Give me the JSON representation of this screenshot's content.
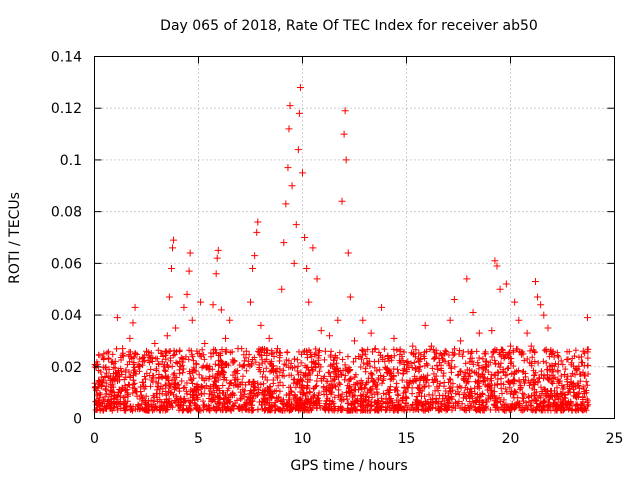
{
  "chart_data": {
    "type": "scatter",
    "title": "Day 065 of 2018, Rate Of TEC Index for receiver ab50",
    "xlabel": "GPS time / hours",
    "ylabel": "ROTI / TECUs",
    "xlim": [
      0,
      25
    ],
    "ylim": [
      0,
      0.14
    ],
    "x_ticks": [
      0,
      5,
      10,
      15,
      20,
      25
    ],
    "y_ticks": [
      0,
      0.02,
      0.04,
      0.06,
      0.08,
      0.1,
      0.12,
      0.14
    ],
    "x_tick_labels": [
      "0",
      "5",
      "10",
      "15",
      "20",
      "25"
    ],
    "y_tick_labels": [
      "0",
      "0.02",
      "0.04",
      "0.06",
      "0.08",
      "0.1",
      "0.12",
      "0.14"
    ],
    "grid": true,
    "marker": "plus",
    "color": "#ff0000",
    "series": [
      {
        "name": "ROTI",
        "points": [
          [
            0.05,
            0.012
          ],
          [
            0.15,
            0.021
          ],
          [
            0.25,
            0.008
          ],
          [
            0.35,
            0.016
          ],
          [
            0.45,
            0.025
          ],
          [
            0.55,
            0.011
          ],
          [
            0.7,
            0.019
          ],
          [
            0.85,
            0.013
          ],
          [
            1.0,
            0.022
          ],
          [
            1.1,
            0.039
          ],
          [
            1.2,
            0.015
          ],
          [
            1.35,
            0.027
          ],
          [
            1.5,
            0.018
          ],
          [
            1.7,
            0.031
          ],
          [
            1.85,
            0.037
          ],
          [
            1.95,
            0.043
          ],
          [
            2.1,
            0.021
          ],
          [
            2.3,
            0.014
          ],
          [
            2.5,
            0.026
          ],
          [
            2.7,
            0.019
          ],
          [
            2.9,
            0.029
          ],
          [
            3.1,
            0.017
          ],
          [
            3.3,
            0.024
          ],
          [
            3.5,
            0.032
          ],
          [
            3.6,
            0.047
          ],
          [
            3.7,
            0.058
          ],
          [
            3.75,
            0.066
          ],
          [
            3.8,
            0.069
          ],
          [
            3.9,
            0.035
          ],
          [
            4.1,
            0.022
          ],
          [
            4.3,
            0.043
          ],
          [
            4.45,
            0.048
          ],
          [
            4.55,
            0.057
          ],
          [
            4.6,
            0.064
          ],
          [
            4.7,
            0.038
          ],
          [
            4.9,
            0.021
          ],
          [
            5.1,
            0.045
          ],
          [
            5.3,
            0.029
          ],
          [
            5.5,
            0.019
          ],
          [
            5.7,
            0.044
          ],
          [
            5.85,
            0.056
          ],
          [
            5.9,
            0.062
          ],
          [
            5.95,
            0.065
          ],
          [
            6.1,
            0.042
          ],
          [
            6.3,
            0.031
          ],
          [
            6.5,
            0.038
          ],
          [
            6.7,
            0.022
          ],
          [
            6.9,
            0.027
          ],
          [
            7.1,
            0.014
          ],
          [
            7.3,
            0.026
          ],
          [
            7.5,
            0.045
          ],
          [
            7.6,
            0.058
          ],
          [
            7.7,
            0.063
          ],
          [
            7.8,
            0.072
          ],
          [
            7.85,
            0.076
          ],
          [
            8.0,
            0.036
          ],
          [
            8.2,
            0.022
          ],
          [
            8.4,
            0.031
          ],
          [
            8.6,
            0.018
          ],
          [
            8.8,
            0.027
          ],
          [
            9.0,
            0.05
          ],
          [
            9.1,
            0.068
          ],
          [
            9.2,
            0.083
          ],
          [
            9.3,
            0.097
          ],
          [
            9.35,
            0.112
          ],
          [
            9.4,
            0.121
          ],
          [
            9.5,
            0.09
          ],
          [
            9.6,
            0.06
          ],
          [
            9.7,
            0.075
          ],
          [
            9.8,
            0.104
          ],
          [
            9.85,
            0.118
          ],
          [
            9.9,
            0.128
          ],
          [
            10.0,
            0.095
          ],
          [
            10.1,
            0.07
          ],
          [
            10.2,
            0.058
          ],
          [
            10.3,
            0.045
          ],
          [
            10.5,
            0.066
          ],
          [
            10.7,
            0.054
          ],
          [
            10.9,
            0.034
          ],
          [
            11.1,
            0.026
          ],
          [
            11.3,
            0.032
          ],
          [
            11.5,
            0.021
          ],
          [
            11.7,
            0.038
          ],
          [
            11.9,
            0.084
          ],
          [
            12.0,
            0.11
          ],
          [
            12.05,
            0.119
          ],
          [
            12.1,
            0.1
          ],
          [
            12.2,
            0.064
          ],
          [
            12.3,
            0.047
          ],
          [
            12.5,
            0.03
          ],
          [
            12.7,
            0.024
          ],
          [
            12.9,
            0.038
          ],
          [
            13.1,
            0.021
          ],
          [
            13.3,
            0.033
          ],
          [
            13.5,
            0.027
          ],
          [
            13.8,
            0.043
          ],
          [
            14.1,
            0.024
          ],
          [
            14.4,
            0.031
          ],
          [
            14.7,
            0.026
          ],
          [
            15.0,
            0.019
          ],
          [
            15.3,
            0.028
          ],
          [
            15.6,
            0.022
          ],
          [
            15.9,
            0.036
          ],
          [
            16.2,
            0.028
          ],
          [
            16.5,
            0.019
          ],
          [
            16.8,
            0.025
          ],
          [
            17.1,
            0.038
          ],
          [
            17.3,
            0.046
          ],
          [
            17.6,
            0.03
          ],
          [
            17.9,
            0.054
          ],
          [
            18.2,
            0.041
          ],
          [
            18.5,
            0.033
          ],
          [
            18.8,
            0.025
          ],
          [
            19.1,
            0.034
          ],
          [
            19.25,
            0.061
          ],
          [
            19.35,
            0.059
          ],
          [
            19.5,
            0.05
          ],
          [
            19.8,
            0.052
          ],
          [
            20.0,
            0.028
          ],
          [
            20.2,
            0.045
          ],
          [
            20.4,
            0.038
          ],
          [
            20.6,
            0.025
          ],
          [
            20.8,
            0.033
          ],
          [
            21.0,
            0.028
          ],
          [
            21.2,
            0.053
          ],
          [
            21.3,
            0.047
          ],
          [
            21.45,
            0.044
          ],
          [
            21.6,
            0.04
          ],
          [
            21.8,
            0.035
          ],
          [
            22.0,
            0.025
          ],
          [
            22.3,
            0.021
          ],
          [
            22.6,
            0.017
          ],
          [
            22.9,
            0.014
          ],
          [
            23.2,
            0.019
          ],
          [
            23.5,
            0.026
          ],
          [
            23.7,
            0.039
          ]
        ]
      }
    ]
  }
}
